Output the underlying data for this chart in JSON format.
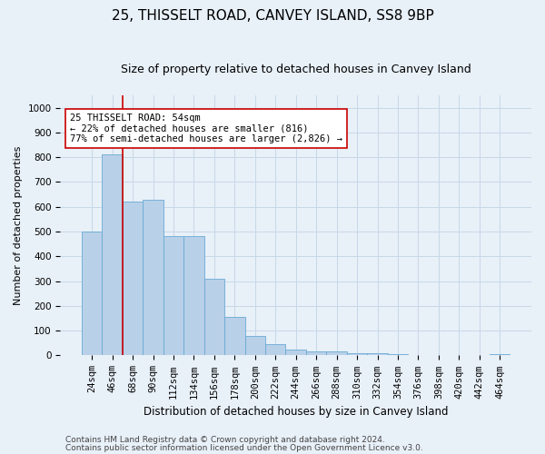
{
  "title1": "25, THISSELT ROAD, CANVEY ISLAND, SS8 9BP",
  "title2": "Size of property relative to detached houses in Canvey Island",
  "xlabel": "Distribution of detached houses by size in Canvey Island",
  "ylabel": "Number of detached properties",
  "categories": [
    "24sqm",
    "46sqm",
    "68sqm",
    "90sqm",
    "112sqm",
    "134sqm",
    "156sqm",
    "178sqm",
    "200sqm",
    "222sqm",
    "244sqm",
    "266sqm",
    "288sqm",
    "310sqm",
    "332sqm",
    "354sqm",
    "376sqm",
    "398sqm",
    "420sqm",
    "442sqm",
    "464sqm"
  ],
  "values": [
    500,
    810,
    620,
    630,
    480,
    480,
    310,
    155,
    80,
    45,
    22,
    18,
    18,
    8,
    8,
    5,
    3,
    2,
    2,
    1,
    4
  ],
  "bar_color": "#b8d0e8",
  "bar_edge_color": "#6aaad4",
  "grid_color": "#c8d8e8",
  "bg_color": "#e8f0f8",
  "vline_color": "#cc0000",
  "vline_x_idx": 1.5,
  "annotation_text": "25 THISSELT ROAD: 54sqm\n← 22% of detached houses are smaller (816)\n77% of semi-detached houses are larger (2,826) →",
  "annotation_box_facecolor": "#ffffff",
  "annotation_box_edgecolor": "#cc0000",
  "footer1": "Contains HM Land Registry data © Crown copyright and database right 2024.",
  "footer2": "Contains public sector information licensed under the Open Government Licence v3.0.",
  "ylim": [
    0,
    1050
  ],
  "yticks": [
    0,
    100,
    200,
    300,
    400,
    500,
    600,
    700,
    800,
    900,
    1000
  ],
  "title1_fontsize": 11,
  "title2_fontsize": 9,
  "ylabel_fontsize": 8,
  "xlabel_fontsize": 8.5,
  "tick_fontsize": 7.5,
  "ann_fontsize": 7.5,
  "footer_fontsize": 6.5
}
